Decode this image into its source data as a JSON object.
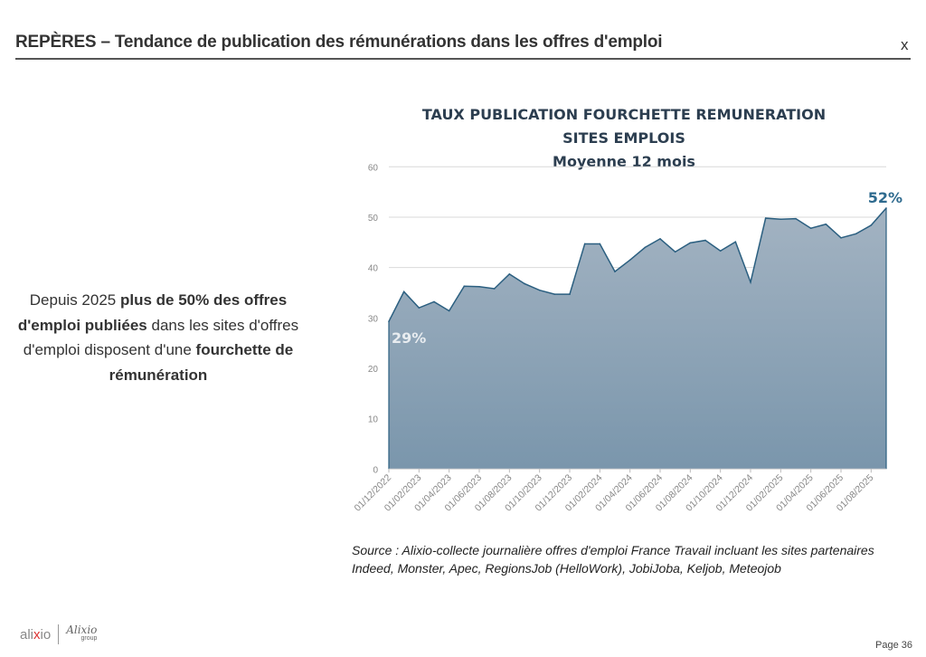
{
  "header": {
    "title": "REPÈRES – Tendance de publication des rémunérations dans les offres d'emploi",
    "close_label": "x"
  },
  "left_text": {
    "part1": "Depuis 2025 ",
    "bold1": "plus de 50% des offres d'emploi publiées",
    "part2": " dans les sites d'offres d'emploi disposent d'une ",
    "bold2": "fourchette de rémunération"
  },
  "chart_data": {
    "type": "area",
    "title": "TAUX PUBLICATION FOURCHETTE REMUNERATION",
    "subtitle": "SITES EMPLOIS",
    "subtitle2": "Moyenne 12 mois",
    "xlabel": "",
    "ylabel": "",
    "ylim": [
      0,
      60
    ],
    "yticks": [
      "0",
      "10",
      "20",
      "30",
      "40",
      "50",
      "60"
    ],
    "grid": true,
    "x": [
      "12/2022",
      "01/2023",
      "02/2023",
      "03/2023",
      "04/2023",
      "05/2023",
      "06/2023",
      "07/2023",
      "08/2023",
      "09/2023",
      "10/2023",
      "11/2023",
      "12/2023",
      "01/2024",
      "02/2024",
      "03/2024",
      "04/2024",
      "05/2024",
      "06/2024",
      "07/2024",
      "08/2024",
      "09/2024",
      "10/2024",
      "11/2024",
      "12/2024",
      "01/2025",
      "02/2025",
      "03/2025",
      "04/2025",
      "05/2025",
      "06/2025",
      "07/2025",
      "08/2025",
      "09/2025"
    ],
    "xtick_labels": [
      "01/12/2022",
      "01/02/2023",
      "01/04/2023",
      "01/06/2023",
      "01/08/2023",
      "01/10/2023",
      "01/12/2023",
      "01/02/2024",
      "01/04/2024",
      "01/06/2024",
      "01/08/2024",
      "01/10/2024",
      "01/12/2024",
      "01/02/2025",
      "01/04/2025",
      "01/06/2025",
      "01/08/2025"
    ],
    "values": [
      29.3,
      35.2,
      32.0,
      33.2,
      31.4,
      36.3,
      36.2,
      35.8,
      38.7,
      36.8,
      35.5,
      34.7,
      34.7,
      44.7,
      44.7,
      39.2,
      41.5,
      44.0,
      45.7,
      43.1,
      44.9,
      45.4,
      43.3,
      45.1,
      37.1,
      49.8,
      49.6,
      49.7,
      47.8,
      48.6,
      45.9,
      46.7,
      48.4,
      51.8
    ],
    "annotations": {
      "start": "29%",
      "end": "52%"
    },
    "colors": {
      "line": "#2b5f80",
      "fill_top": "#a3b3c2",
      "fill_bottom": "#7a96ac",
      "end_label": "#2e6a8e"
    }
  },
  "source": {
    "line1": "Source : Alixio-collecte journalière offres d'emploi France Travail incluant les sites partenaires",
    "line2": "Indeed, Monster, Apec, RegionsJob (HelloWork), JobiJoba, Keljob, Meteojob"
  },
  "footer": {
    "logo_text": "alixio",
    "logo_group": "Alixio group",
    "page": "Page 36"
  }
}
